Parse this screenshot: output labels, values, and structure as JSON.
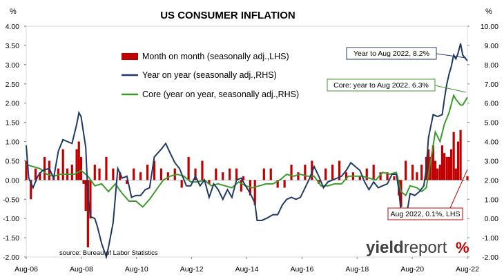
{
  "chart_data": {
    "type": "bar+line",
    "title": "US CONSUMER INFLATION",
    "left_unit": "%",
    "right_unit": "%",
    "source": "source: Bureau of Labor Statistics",
    "logo_text": "yieldreport",
    "x_tick_labels": [
      "Aug-06",
      "Aug-08",
      "Aug-10",
      "Aug-12",
      "Aug-14",
      "Aug-16",
      "Aug-18",
      "Aug-20",
      "Aug-22"
    ],
    "x_range": [
      2006.58,
      2022.67
    ],
    "y_left": {
      "min": -2.0,
      "max": 4.0,
      "ticks": [
        "-2.00",
        "-1.50",
        "-1.00",
        "-0.50",
        "0.00",
        "0.50",
        "1.00",
        "1.50",
        "2.00",
        "2.50",
        "3.00",
        "3.50",
        "4.00"
      ]
    },
    "y_right": {
      "min": -2.0,
      "max": 10.0,
      "ticks": [
        "-2.00",
        "-1.00",
        "0.00",
        "1.00",
        "2.00",
        "3.00",
        "4.00",
        "5.00",
        "6.00",
        "7.00",
        "8.00",
        "9.00",
        "10.00"
      ]
    },
    "grid": false,
    "legend_position": "top-center",
    "series": [
      {
        "name": "Month on month (seasonally adj.,LHS)",
        "type": "bar",
        "axis": "left",
        "color": "#c00000",
        "points": [
          [
            2006.58,
            0.5
          ],
          [
            2006.75,
            -0.5
          ],
          [
            2006.92,
            0.3
          ],
          [
            2007.08,
            0.2
          ],
          [
            2007.25,
            0.6
          ],
          [
            2007.42,
            0.5
          ],
          [
            2007.58,
            0.1
          ],
          [
            2007.75,
            0.3
          ],
          [
            2007.92,
            0.8
          ],
          [
            2008.08,
            0.3
          ],
          [
            2008.25,
            0.4
          ],
          [
            2008.42,
            0.8
          ],
          [
            2008.5,
            1.0
          ],
          [
            2008.58,
            0.6
          ],
          [
            2008.67,
            -0.1
          ],
          [
            2008.75,
            -0.8
          ],
          [
            2008.83,
            -1.75
          ],
          [
            2008.92,
            -1.0
          ],
          [
            2009.08,
            0.4
          ],
          [
            2009.25,
            0.3
          ],
          [
            2009.5,
            0.6
          ],
          [
            2009.75,
            0.3
          ],
          [
            2010.0,
            0.2
          ],
          [
            2010.25,
            -0.1
          ],
          [
            2010.5,
            0.3
          ],
          [
            2010.75,
            0.2
          ],
          [
            2011.0,
            0.4
          ],
          [
            2011.25,
            0.5
          ],
          [
            2011.5,
            0.3
          ],
          [
            2011.75,
            0.2
          ],
          [
            2012.0,
            0.3
          ],
          [
            2012.25,
            -0.2
          ],
          [
            2012.5,
            0.6
          ],
          [
            2012.75,
            0.3
          ],
          [
            2013.0,
            0.5
          ],
          [
            2013.25,
            -0.1
          ],
          [
            2013.5,
            0.3
          ],
          [
            2013.75,
            0.2
          ],
          [
            2014.0,
            0.3
          ],
          [
            2014.25,
            0.3
          ],
          [
            2014.42,
            -0.3
          ],
          [
            2014.5,
            0.1
          ],
          [
            2014.75,
            -0.4
          ],
          [
            2014.92,
            -0.65
          ],
          [
            2015.25,
            0.3
          ],
          [
            2015.5,
            0.3
          ],
          [
            2015.75,
            -0.2
          ],
          [
            2016.0,
            -0.2
          ],
          [
            2016.25,
            0.4
          ],
          [
            2016.5,
            0.2
          ],
          [
            2016.75,
            0.4
          ],
          [
            2017.0,
            0.5
          ],
          [
            2017.25,
            -0.1
          ],
          [
            2017.5,
            0.3
          ],
          [
            2017.75,
            0.4
          ],
          [
            2018.0,
            0.5
          ],
          [
            2018.25,
            0.2
          ],
          [
            2018.5,
            0.2
          ],
          [
            2018.75,
            0.1
          ],
          [
            2019.0,
            0.3
          ],
          [
            2019.25,
            0.4
          ],
          [
            2019.5,
            0.2
          ],
          [
            2019.75,
            0.2
          ],
          [
            2020.0,
            0.1
          ],
          [
            2020.17,
            -0.4
          ],
          [
            2020.25,
            -0.7
          ],
          [
            2020.42,
            0.5
          ],
          [
            2020.67,
            0.4
          ],
          [
            2020.83,
            0.2
          ],
          [
            2021.0,
            0.4
          ],
          [
            2021.17,
            0.6
          ],
          [
            2021.25,
            0.8
          ],
          [
            2021.33,
            0.6
          ],
          [
            2021.42,
            0.9
          ],
          [
            2021.5,
            0.5
          ],
          [
            2021.58,
            0.3
          ],
          [
            2021.67,
            0.4
          ],
          [
            2021.75,
            0.9
          ],
          [
            2021.83,
            0.7
          ],
          [
            2021.92,
            0.6
          ],
          [
            2022.0,
            0.6
          ],
          [
            2022.08,
            0.8
          ],
          [
            2022.17,
            1.25
          ],
          [
            2022.25,
            0.3
          ],
          [
            2022.33,
            1.0
          ],
          [
            2022.42,
            1.3
          ],
          [
            2022.5,
            0.0
          ],
          [
            2022.67,
            0.1
          ]
        ]
      },
      {
        "name": "Year on year (seasonally adj.,RHS)",
        "type": "line",
        "axis": "right",
        "color": "#1f3864",
        "points": [
          [
            2006.58,
            3.8
          ],
          [
            2006.67,
            2.1
          ],
          [
            2006.83,
            1.6
          ],
          [
            2007.0,
            2.2
          ],
          [
            2007.17,
            2.5
          ],
          [
            2007.42,
            2.6
          ],
          [
            2007.58,
            2.1
          ],
          [
            2007.75,
            3.5
          ],
          [
            2007.92,
            4.1
          ],
          [
            2008.08,
            4.0
          ],
          [
            2008.25,
            3.9
          ],
          [
            2008.42,
            4.9
          ],
          [
            2008.5,
            5.5
          ],
          [
            2008.58,
            5.3
          ],
          [
            2008.75,
            3.7
          ],
          [
            2008.83,
            1.1
          ],
          [
            2008.92,
            0.1
          ],
          [
            2009.08,
            0.0
          ],
          [
            2009.17,
            -0.4
          ],
          [
            2009.33,
            -1.3
          ],
          [
            2009.5,
            -2.0
          ],
          [
            2009.58,
            -1.5
          ],
          [
            2009.75,
            -0.2
          ],
          [
            2009.92,
            2.6
          ],
          [
            2010.08,
            2.1
          ],
          [
            2010.25,
            2.2
          ],
          [
            2010.42,
            1.1
          ],
          [
            2010.58,
            1.2
          ],
          [
            2010.75,
            1.2
          ],
          [
            2010.92,
            1.5
          ],
          [
            2011.08,
            1.6
          ],
          [
            2011.25,
            3.2
          ],
          [
            2011.5,
            3.6
          ],
          [
            2011.67,
            3.9
          ],
          [
            2011.83,
            3.4
          ],
          [
            2012.0,
            2.9
          ],
          [
            2012.17,
            2.6
          ],
          [
            2012.42,
            1.7
          ],
          [
            2012.58,
            1.7
          ],
          [
            2012.75,
            2.2
          ],
          [
            2012.92,
            1.7
          ],
          [
            2013.08,
            2.0
          ],
          [
            2013.25,
            1.1
          ],
          [
            2013.42,
            1.8
          ],
          [
            2013.58,
            1.5
          ],
          [
            2013.75,
            1.0
          ],
          [
            2013.92,
            1.5
          ],
          [
            2014.08,
            1.1
          ],
          [
            2014.25,
            2.0
          ],
          [
            2014.42,
            2.1
          ],
          [
            2014.58,
            1.7
          ],
          [
            2014.75,
            1.3
          ],
          [
            2014.92,
            0.8
          ],
          [
            2015.0,
            -0.1
          ],
          [
            2015.17,
            -0.1
          ],
          [
            2015.33,
            0.0
          ],
          [
            2015.58,
            0.2
          ],
          [
            2015.75,
            0.2
          ],
          [
            2015.92,
            0.7
          ],
          [
            2016.08,
            1.0
          ],
          [
            2016.25,
            1.1
          ],
          [
            2016.42,
            1.0
          ],
          [
            2016.58,
            1.1
          ],
          [
            2016.75,
            1.6
          ],
          [
            2016.92,
            2.1
          ],
          [
            2017.08,
            2.7
          ],
          [
            2017.25,
            2.2
          ],
          [
            2017.42,
            1.6
          ],
          [
            2017.58,
            1.9
          ],
          [
            2017.75,
            2.0
          ],
          [
            2017.92,
            2.1
          ],
          [
            2018.08,
            2.2
          ],
          [
            2018.25,
            2.5
          ],
          [
            2018.42,
            2.9
          ],
          [
            2018.58,
            2.7
          ],
          [
            2018.75,
            2.5
          ],
          [
            2018.92,
            1.9
          ],
          [
            2019.08,
            1.5
          ],
          [
            2019.25,
            1.9
          ],
          [
            2019.42,
            1.6
          ],
          [
            2019.58,
            1.7
          ],
          [
            2019.75,
            1.8
          ],
          [
            2019.92,
            2.3
          ],
          [
            2020.08,
            2.3
          ],
          [
            2020.17,
            1.5
          ],
          [
            2020.25,
            0.3
          ],
          [
            2020.33,
            0.1
          ],
          [
            2020.5,
            0.6
          ],
          [
            2020.58,
            1.3
          ],
          [
            2020.75,
            1.2
          ],
          [
            2020.92,
            1.4
          ],
          [
            2021.08,
            1.7
          ],
          [
            2021.17,
            2.6
          ],
          [
            2021.25,
            4.2
          ],
          [
            2021.42,
            5.4
          ],
          [
            2021.58,
            5.3
          ],
          [
            2021.75,
            5.4
          ],
          [
            2021.83,
            6.2
          ],
          [
            2021.92,
            7.0
          ],
          [
            2022.0,
            7.5
          ],
          [
            2022.08,
            7.9
          ],
          [
            2022.17,
            8.5
          ],
          [
            2022.25,
            8.3
          ],
          [
            2022.33,
            8.6
          ],
          [
            2022.42,
            9.1
          ],
          [
            2022.5,
            8.5
          ],
          [
            2022.67,
            8.2
          ]
        ]
      },
      {
        "name": "Core (year on year, seasonally adj.,RHS)",
        "type": "line",
        "axis": "right",
        "color": "#3a9a2a",
        "points": [
          [
            2006.58,
            2.8
          ],
          [
            2006.83,
            2.7
          ],
          [
            2007.08,
            2.6
          ],
          [
            2007.33,
            2.3
          ],
          [
            2007.58,
            2.2
          ],
          [
            2007.83,
            2.3
          ],
          [
            2008.08,
            2.3
          ],
          [
            2008.33,
            2.3
          ],
          [
            2008.58,
            2.5
          ],
          [
            2008.83,
            2.2
          ],
          [
            2009.08,
            1.7
          ],
          [
            2009.33,
            1.8
          ],
          [
            2009.58,
            1.4
          ],
          [
            2009.83,
            1.8
          ],
          [
            2010.08,
            1.3
          ],
          [
            2010.33,
            0.9
          ],
          [
            2010.58,
            0.9
          ],
          [
            2010.83,
            0.6
          ],
          [
            2011.08,
            1.0
          ],
          [
            2011.33,
            1.5
          ],
          [
            2011.58,
            2.0
          ],
          [
            2011.83,
            2.2
          ],
          [
            2012.08,
            2.3
          ],
          [
            2012.33,
            2.2
          ],
          [
            2012.58,
            1.9
          ],
          [
            2012.83,
            1.9
          ],
          [
            2013.08,
            2.0
          ],
          [
            2013.33,
            1.7
          ],
          [
            2013.58,
            1.8
          ],
          [
            2013.83,
            1.7
          ],
          [
            2014.08,
            1.6
          ],
          [
            2014.33,
            1.9
          ],
          [
            2014.58,
            1.7
          ],
          [
            2014.83,
            1.6
          ],
          [
            2015.08,
            1.7
          ],
          [
            2015.33,
            1.8
          ],
          [
            2015.58,
            1.8
          ],
          [
            2015.83,
            2.0
          ],
          [
            2016.08,
            2.3
          ],
          [
            2016.33,
            2.2
          ],
          [
            2016.58,
            2.3
          ],
          [
            2016.83,
            2.2
          ],
          [
            2017.08,
            2.2
          ],
          [
            2017.33,
            1.7
          ],
          [
            2017.58,
            1.7
          ],
          [
            2017.83,
            1.8
          ],
          [
            2018.08,
            1.8
          ],
          [
            2018.33,
            2.2
          ],
          [
            2018.58,
            2.2
          ],
          [
            2018.83,
            2.2
          ],
          [
            2019.08,
            2.1
          ],
          [
            2019.33,
            2.0
          ],
          [
            2019.58,
            2.4
          ],
          [
            2019.83,
            2.3
          ],
          [
            2020.08,
            2.4
          ],
          [
            2020.25,
            1.4
          ],
          [
            2020.42,
            1.2
          ],
          [
            2020.58,
            1.7
          ],
          [
            2020.83,
            1.6
          ],
          [
            2021.0,
            1.4
          ],
          [
            2021.17,
            1.6
          ],
          [
            2021.33,
            3.0
          ],
          [
            2021.42,
            3.8
          ],
          [
            2021.5,
            4.5
          ],
          [
            2021.67,
            4.0
          ],
          [
            2021.83,
            4.9
          ],
          [
            2022.0,
            5.5
          ],
          [
            2022.17,
            6.4
          ],
          [
            2022.25,
            6.2
          ],
          [
            2022.42,
            5.9
          ],
          [
            2022.5,
            5.9
          ],
          [
            2022.67,
            6.3
          ]
        ]
      }
    ],
    "annotations": [
      {
        "name": "yoy-callout",
        "text": "Year to Aug 2022, 8.2%",
        "color": "#1f3864"
      },
      {
        "name": "core-callout",
        "text": "Core: year to Aug 2022, 6.3%",
        "color": "#3a9a2a"
      },
      {
        "name": "mom-callout",
        "text": "Aug 2022, 0.1%, LHS",
        "color": "#c00000"
      }
    ]
  }
}
